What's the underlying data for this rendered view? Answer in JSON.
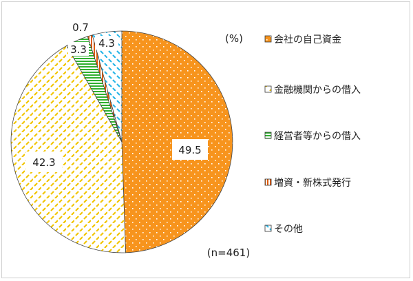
{
  "chart_data": {
    "type": "pie",
    "unit_label": "(%)",
    "n_label": "(n=461)",
    "slices": [
      {
        "name": "会社の自己資金",
        "value": 49.5,
        "label": "49.5",
        "color": "#f7941d",
        "pattern": "dots-white"
      },
      {
        "name": "金融機関からの借入",
        "value": 42.3,
        "label": "42.3",
        "color": "#f2c500",
        "pattern": "dashes-yellow"
      },
      {
        "name": "経営者等からの借入",
        "value": 3.3,
        "label": "3.3",
        "color": "#2fb02f",
        "pattern": "hstripes-green"
      },
      {
        "name": "増資・新株式発行",
        "value": 0.7,
        "label": "0.7",
        "color": "#e05a00",
        "pattern": "vstripes-orange"
      },
      {
        "name": "その他",
        "value": 4.3,
        "label": "4.3",
        "color": "#29b6e8",
        "pattern": "dashes-blue"
      }
    ],
    "legend_position": "right"
  }
}
